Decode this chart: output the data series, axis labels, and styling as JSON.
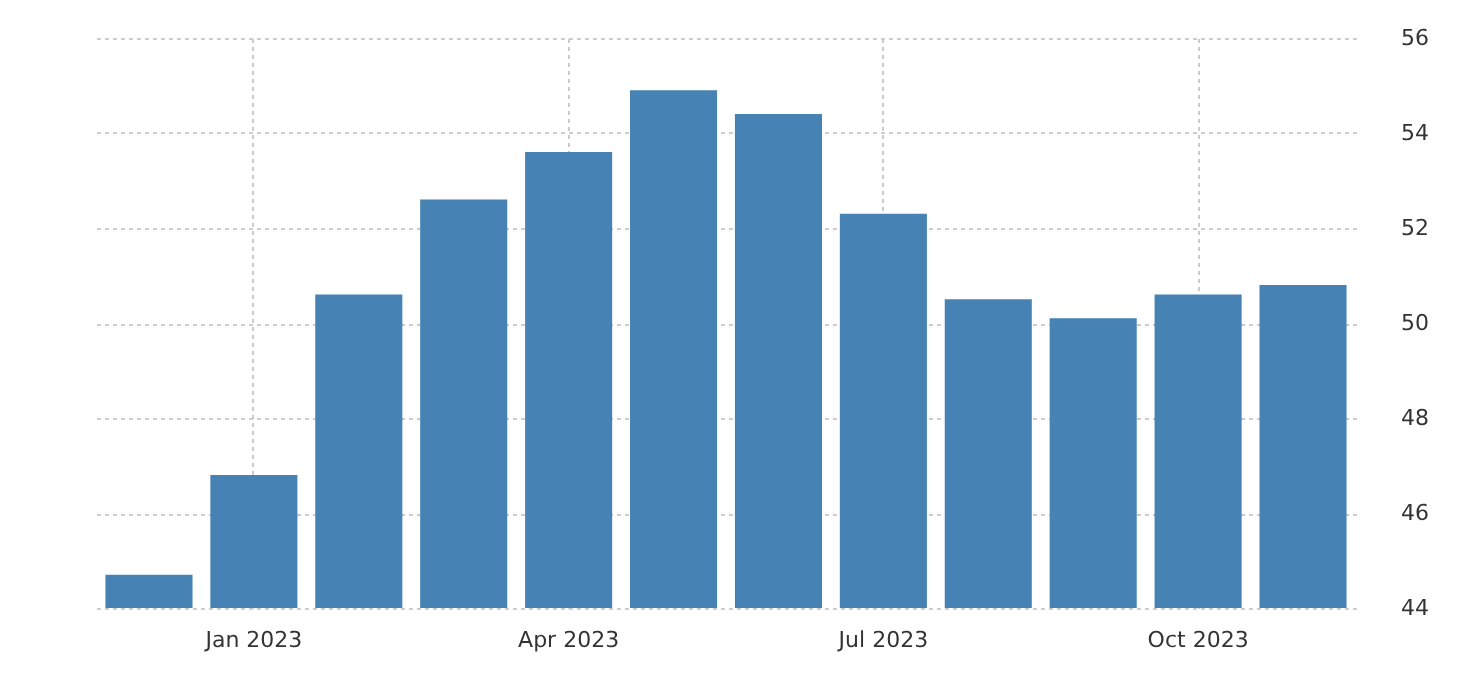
{
  "chart_data": {
    "type": "bar",
    "categories": [
      null,
      "Jan 2023",
      null,
      null,
      "Apr 2023",
      null,
      null,
      "Jul 2023",
      null,
      null,
      "Oct 2023",
      null
    ],
    "values": [
      44.7,
      46.8,
      50.6,
      52.6,
      53.6,
      54.9,
      54.4,
      52.3,
      50.5,
      50.1,
      50.6,
      50.8
    ],
    "color": "#4682b4",
    "ylim": [
      44,
      56
    ],
    "yticks": [
      44,
      46,
      48,
      50,
      52,
      54,
      56
    ],
    "grid": true
  }
}
